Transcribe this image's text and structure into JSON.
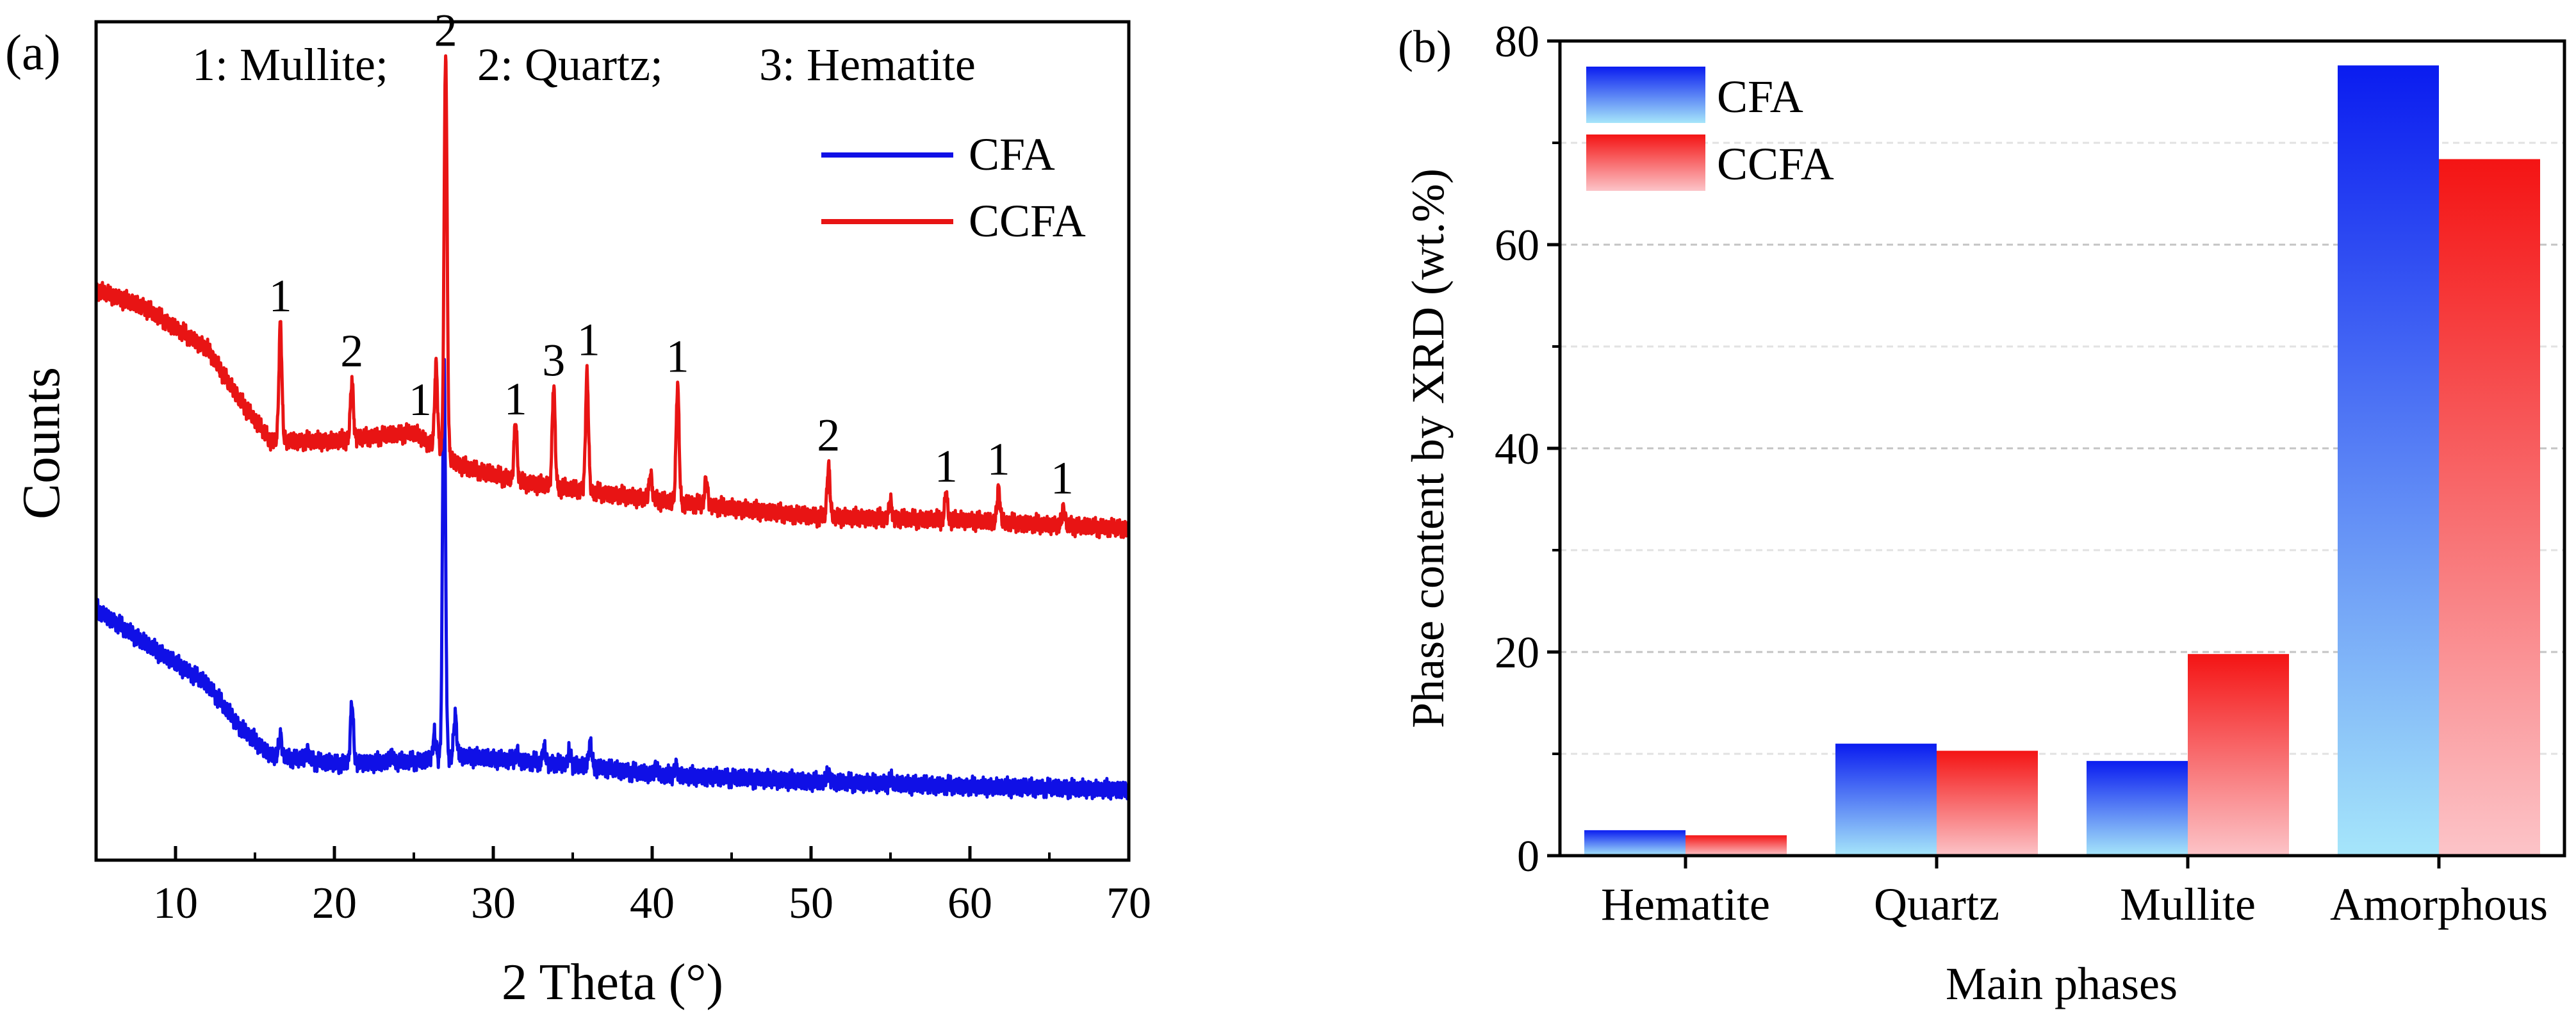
{
  "chart_data": [
    {
      "panel_label": "(a)",
      "type": "line",
      "xlabel": "2 Theta (°)",
      "ylabel": "Counts",
      "xlim": [
        5,
        70
      ],
      "xticks": [
        "10",
        "20",
        "30",
        "40",
        "50",
        "60",
        "70"
      ],
      "xtick_values": [
        10,
        20,
        30,
        40,
        50,
        60,
        70
      ],
      "phase_key": [
        "1: Mullite;",
        "2: Quartz;",
        "3: Hematite"
      ],
      "legend": [
        "CFA",
        "CCFA"
      ],
      "colors": {
        "CFA": "#1010e6",
        "CCFA": "#e81414"
      },
      "series": [
        {
          "name": "CFA",
          "baseline": [
            [
              5,
              0.3
            ],
            [
              8,
              0.26
            ],
            [
              12,
              0.21
            ],
            [
              14,
              0.16
            ],
            [
              16,
              0.125
            ],
            [
              20,
              0.115
            ],
            [
              25,
              0.118
            ],
            [
              28,
              0.124
            ],
            [
              32,
              0.118
            ],
            [
              36,
              0.112
            ],
            [
              40,
              0.102
            ],
            [
              50,
              0.094
            ],
            [
              60,
              0.088
            ],
            [
              70,
              0.084
            ]
          ],
          "peaks": [
            [
              16.6,
              0.025
            ],
            [
              18.3,
              0.012
            ],
            [
              21.1,
              0.072
            ],
            [
              23.6,
              0.01
            ],
            [
              26.3,
              0.03
            ],
            [
              26.9,
              0.48
            ],
            [
              27.6,
              0.05
            ],
            [
              31.5,
              0.01
            ],
            [
              33.2,
              0.018
            ],
            [
              34.8,
              0.016
            ],
            [
              36.1,
              0.028
            ],
            [
              40.2,
              0.01
            ],
            [
              41.5,
              0.012
            ],
            [
              51.1,
              0.012
            ],
            [
              55.0,
              0.006
            ]
          ]
        },
        {
          "name": "CCFA",
          "baseline": [
            [
              5,
              0.68
            ],
            [
              8,
              0.66
            ],
            [
              12,
              0.61
            ],
            [
              14,
              0.55
            ],
            [
              16,
              0.5
            ],
            [
              20,
              0.5
            ],
            [
              25,
              0.51
            ],
            [
              28,
              0.47
            ],
            [
              32,
              0.45
            ],
            [
              36,
              0.44
            ],
            [
              40,
              0.43
            ],
            [
              50,
              0.41
            ],
            [
              60,
              0.405
            ],
            [
              70,
              0.395
            ]
          ],
          "peaks": [
            [
              16.6,
              0.14
            ],
            [
              21.1,
              0.07
            ],
            [
              26.4,
              0.1
            ],
            [
              27.0,
              0.48
            ],
            [
              31.4,
              0.07
            ],
            [
              33.8,
              0.12
            ],
            [
              35.9,
              0.14
            ],
            [
              39.9,
              0.03
            ],
            [
              41.6,
              0.14
            ],
            [
              43.4,
              0.03
            ],
            [
              51.1,
              0.06
            ],
            [
              55.0,
              0.02
            ],
            [
              58.5,
              0.03
            ],
            [
              61.8,
              0.04
            ],
            [
              65.9,
              0.02
            ]
          ]
        }
      ],
      "annotations": [
        {
          "text": "1",
          "x": 16.6
        },
        {
          "text": "2",
          "x": 21.1
        },
        {
          "text": "1",
          "x": 25.4
        },
        {
          "text": "2",
          "x": 27.0
        },
        {
          "text": "1",
          "x": 31.4
        },
        {
          "text": "3",
          "x": 33.8
        },
        {
          "text": "1",
          "x": 36.0
        },
        {
          "text": "1",
          "x": 41.6
        },
        {
          "text": "2",
          "x": 51.1
        },
        {
          "text": "1",
          "x": 58.5
        },
        {
          "text": "1",
          "x": 61.8
        },
        {
          "text": "1",
          "x": 65.8
        }
      ]
    },
    {
      "panel_label": "(b)",
      "type": "bar",
      "xlabel": "Main phases",
      "ylabel": "Phase content by XRD (wt.%)",
      "ylim": [
        0,
        80
      ],
      "yticks": [
        "0",
        "20",
        "40",
        "60",
        "80"
      ],
      "ytick_values": [
        0,
        20,
        40,
        60,
        80
      ],
      "grid": true,
      "categories": [
        "Hematite",
        "Quartz",
        "Mullite",
        "Amorphous"
      ],
      "series": [
        {
          "name": "CFA",
          "values": [
            2.5,
            11.0,
            9.3,
            77.6
          ],
          "color_top": "#0a1cf0",
          "color_bottom": "#a6e6fa"
        },
        {
          "name": "CCFA",
          "values": [
            2.0,
            10.3,
            19.8,
            68.4
          ],
          "color_top": "#f41414",
          "color_bottom": "#fcc4c8"
        }
      ],
      "legend": [
        "CFA",
        "CCFA"
      ]
    }
  ]
}
